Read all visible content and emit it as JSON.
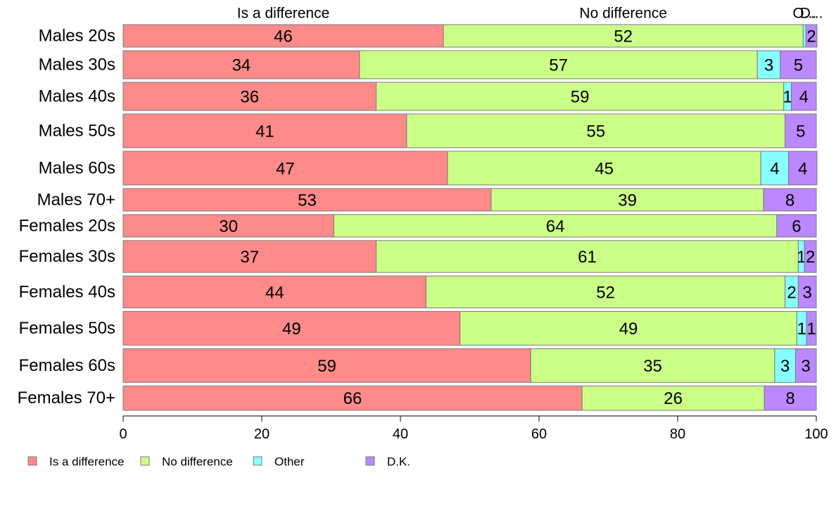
{
  "chart_data": {
    "type": "bar",
    "orientation": "horizontal",
    "stacked": true,
    "categories": [
      "Males 20s",
      "Males 30s",
      "Males 40s",
      "Males 50s",
      "Males 60s",
      "Males 70+",
      "Females 20s",
      "Females 30s",
      "Females 40s",
      "Females 50s",
      "Females 60s",
      "Females 70+"
    ],
    "bar_height_weights": [
      1.2,
      1.5,
      1.5,
      1.8,
      1.8,
      1.2,
      1.2,
      1.7,
      1.7,
      1.8,
      1.8,
      1.3
    ],
    "series": [
      {
        "name": "Is a difference",
        "color": "#FF8A8A",
        "values": [
          46.2,
          34.1,
          36.5,
          40.9,
          46.8,
          53.1,
          30.4,
          36.5,
          43.7,
          48.6,
          58.8,
          66.2
        ]
      },
      {
        "name": "No difference",
        "color": "#CCFF88",
        "values": [
          51.9,
          57.4,
          58.8,
          54.6,
          45.2,
          39.3,
          63.9,
          60.9,
          51.8,
          48.6,
          35.2,
          26.3
        ]
      },
      {
        "name": "Other",
        "color": "#88FFFF",
        "values": [
          0.4,
          3.3,
          1.1,
          0,
          4.0,
          0,
          0,
          0.9,
          1.9,
          1.4,
          3.0,
          0
        ]
      },
      {
        "name": "D.K.",
        "color": "#BB88FF",
        "values": [
          1.6,
          5.2,
          3.6,
          4.5,
          4.1,
          7.6,
          5.7,
          1.7,
          2.6,
          1.4,
          3.0,
          7.5
        ]
      }
    ],
    "data_labels": [
      [
        "46",
        "52",
        "",
        "2"
      ],
      [
        "34",
        "57",
        "3",
        "5"
      ],
      [
        "36",
        "59",
        "1",
        "4"
      ],
      [
        "41",
        "55",
        "",
        "5"
      ],
      [
        "47",
        "45",
        "4",
        "4"
      ],
      [
        "53",
        "39",
        "",
        "8"
      ],
      [
        "30",
        "64",
        "",
        "6"
      ],
      [
        "37",
        "61",
        "1",
        "2"
      ],
      [
        "44",
        "52",
        "2",
        "3"
      ],
      [
        "49",
        "49",
        "1",
        "1"
      ],
      [
        "59",
        "35",
        "3",
        "3"
      ],
      [
        "66",
        "26",
        "",
        "8"
      ]
    ],
    "column_headers": [
      "Is a difference",
      "No difference",
      "O...",
      "D..."
    ],
    "xlim": [
      0,
      100
    ],
    "xticks": [
      0,
      20,
      40,
      60,
      80,
      100
    ],
    "title": "",
    "xlabel": "",
    "ylabel": "",
    "legend": {
      "position": "bottom",
      "labels": [
        "Is a difference",
        "No difference",
        "Other",
        "D.K."
      ]
    },
    "grid": false
  }
}
